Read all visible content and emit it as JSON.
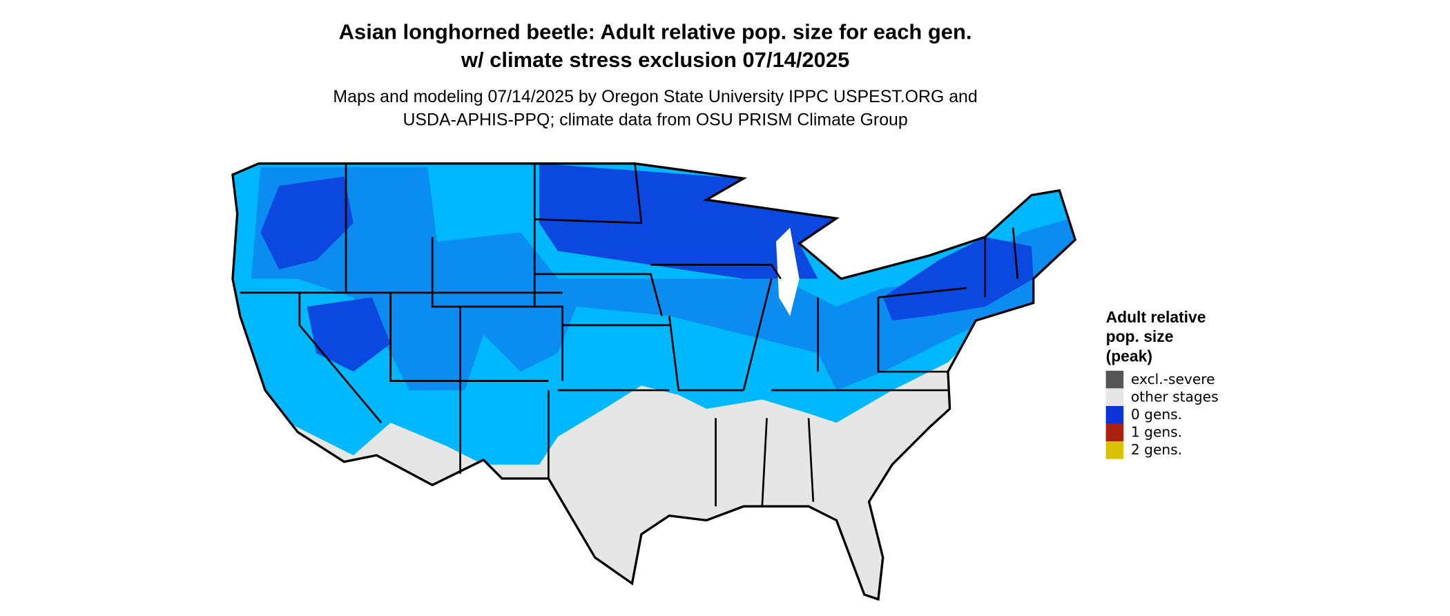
{
  "title": [
    "Asian longhorned beetle: Adult relative pop. size for each gen.",
    "w/ climate stress exclusion 07/14/2025"
  ],
  "subtitle": [
    "Maps and modeling 07/14/2025 by Oregon State University IPPC USPEST.ORG and",
    "USDA-APHIS-PPQ; climate data from OSU PRISM Climate Group"
  ],
  "legend": {
    "title": [
      "Adult relative",
      "pop. size",
      "(peak)"
    ],
    "items": [
      {
        "label": "excl.-severe",
        "color": "#555555"
      },
      {
        "label": "other stages",
        "color": "#e6e6e6"
      },
      {
        "label": "0 gens.",
        "color": "#0a34d8"
      },
      {
        "label": "1 gens.",
        "color": "#a8220f"
      },
      {
        "label": "2 gens.",
        "color": "#d9c300"
      }
    ]
  }
}
